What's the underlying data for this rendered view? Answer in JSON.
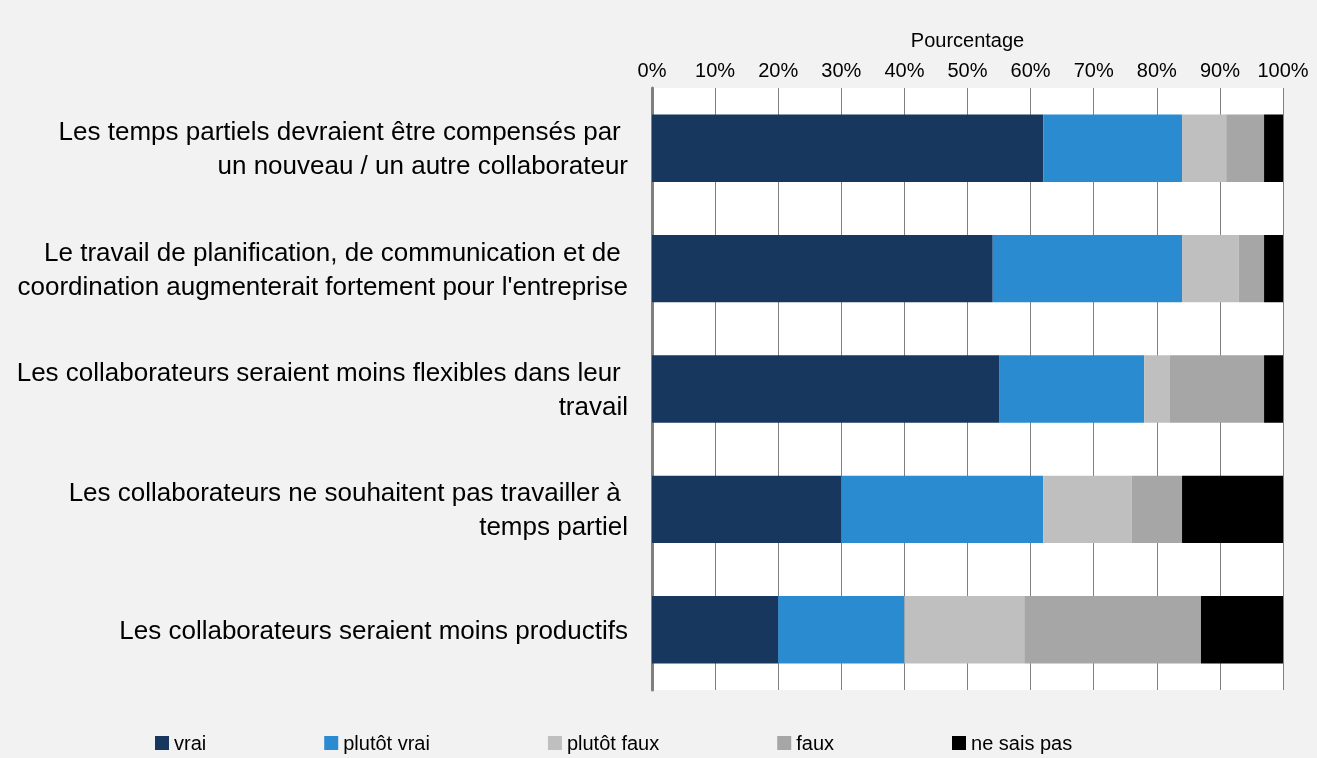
{
  "chart_data": {
    "type": "bar",
    "orientation": "horizontal",
    "stacked": true,
    "xlabel": "Pourcentage",
    "categories": [
      "Les temps partiels devraient être compensés par un nouveau / un autre collaborateur",
      "Le travail de planification, de communication et de coordination augmenterait fortement pour l'entreprise",
      "Les collaborateurs seraient moins flexibles dans leur travail",
      "Les collaborateurs ne souhaitent pas travailler à temps partiel",
      "Les collaborateurs seraient moins productifs"
    ],
    "series": [
      {
        "name": "vrai",
        "color": "#17375e",
        "values": [
          62,
          54,
          55,
          30,
          20
        ]
      },
      {
        "name": "plutôt vrai",
        "color": "#2b8bd0",
        "values": [
          22,
          30,
          23,
          32,
          20
        ]
      },
      {
        "name": "plutôt faux",
        "color": "#bfbfbf",
        "values": [
          7,
          9,
          4,
          14,
          19
        ]
      },
      {
        "name": "faux",
        "color": "#a6a6a6",
        "values": [
          6,
          4,
          15,
          8,
          28
        ]
      },
      {
        "name": "ne sais pas",
        "color": "#000000",
        "values": [
          3,
          3,
          3,
          16,
          13
        ]
      }
    ],
    "xlim": [
      0,
      100
    ],
    "xticks": [
      {
        "value": 0,
        "label": "0%"
      },
      {
        "value": 10,
        "label": "10%"
      },
      {
        "value": 20,
        "label": "20%"
      },
      {
        "value": 30,
        "label": "30%"
      },
      {
        "value": 40,
        "label": "40%"
      },
      {
        "value": 50,
        "label": "50%"
      },
      {
        "value": 60,
        "label": "60%"
      },
      {
        "value": 70,
        "label": "70%"
      },
      {
        "value": 80,
        "label": "80%"
      },
      {
        "value": 90,
        "label": "90%"
      },
      {
        "value": 100,
        "label": "100%"
      }
    ],
    "grid": "x",
    "legend": "bottom"
  }
}
